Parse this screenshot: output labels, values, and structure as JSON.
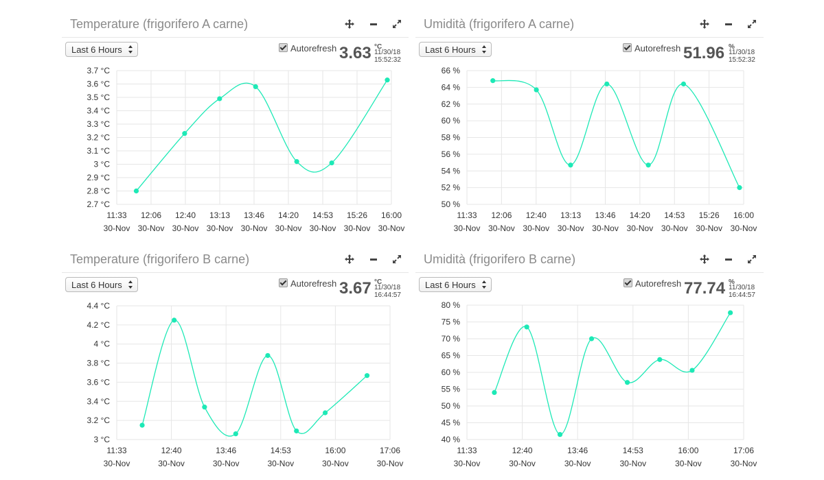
{
  "panels": [
    {
      "title": "Temperature (frigorifero A carne)",
      "range_label": "Last 6 Hours",
      "autorefresh_label": "Autorefresh",
      "autorefresh_checked": true,
      "current_value": "3.63",
      "unit": "°C",
      "date": "11/30/18",
      "time": "15:52:32",
      "line_color": "#1de9b6"
    },
    {
      "title": "Umidità (frigorifero A carne)",
      "range_label": "Last 6 Hours",
      "autorefresh_label": "Autorefresh",
      "autorefresh_checked": true,
      "current_value": "51.96",
      "unit": "%",
      "date": "11/30/18",
      "time": "15:52:32",
      "line_color": "#1de9b6"
    },
    {
      "title": "Temperature (frigorifero B carne)",
      "range_label": "Last 6 Hours",
      "autorefresh_label": "Autorefresh",
      "autorefresh_checked": true,
      "current_value": "3.67",
      "unit": "°C",
      "date": "11/30/18",
      "time": "16:44:57",
      "line_color": "#1de9b6"
    },
    {
      "title": "Umidità (frigorifero B carne)",
      "range_label": "Last 6 Hours",
      "autorefresh_label": "Autorefresh",
      "autorefresh_checked": true,
      "current_value": "77.74",
      "unit": "%",
      "date": "11/30/18",
      "time": "16:44:57",
      "line_color": "#1de9b6"
    }
  ],
  "icons": {
    "move": "move-icon",
    "minimize": "minimize-icon",
    "expand": "expand-icon",
    "select_arrows": "select-arrows-icon",
    "checkbox": "checkbox-checked-icon"
  },
  "chart_data": [
    {
      "type": "line",
      "title": "Temperature (frigorifero A carne)",
      "x_ticks": [
        "11:33",
        "12:06",
        "12:40",
        "13:13",
        "13:46",
        "14:20",
        "14:53",
        "15:26",
        "16:00"
      ],
      "x_tick_sublabel": "30-Nov",
      "y_ticks": [
        "2.7 °C",
        "2.8 °C",
        "2.9 °C",
        "3 °C",
        "3.1 °C",
        "3.2 °C",
        "3.3 °C",
        "3.4 °C",
        "3.5 °C",
        "3.6 °C",
        "3.7 °C"
      ],
      "ylim": [
        2.7,
        3.7
      ],
      "grid": true,
      "series": [
        {
          "x": [
            "11:52",
            "12:39",
            "13:13",
            "13:48",
            "14:28",
            "15:02",
            "15:56"
          ],
          "values": [
            2.8,
            3.23,
            3.49,
            3.58,
            3.02,
            3.01,
            3.63
          ]
        }
      ]
    },
    {
      "type": "line",
      "title": "Umidità (frigorifero A carne)",
      "x_ticks": [
        "11:33",
        "12:06",
        "12:40",
        "13:13",
        "13:46",
        "14:20",
        "14:53",
        "15:26",
        "16:00"
      ],
      "x_tick_sublabel": "30-Nov",
      "y_ticks": [
        "50 %",
        "52 %",
        "54 %",
        "56 %",
        "58 %",
        "60 %",
        "62 %",
        "64 %",
        "66 %"
      ],
      "ylim": [
        50,
        66
      ],
      "grid": true,
      "series": [
        {
          "x": [
            "11:58",
            "12:40",
            "13:13",
            "13:48",
            "14:28",
            "15:02",
            "15:56"
          ],
          "values": [
            64.8,
            63.7,
            54.7,
            64.4,
            54.7,
            64.4,
            52.0
          ]
        }
      ]
    },
    {
      "type": "line",
      "title": "Temperature (frigorifero B carne)",
      "x_ticks": [
        "11:33",
        "12:40",
        "13:46",
        "14:53",
        "16:00",
        "17:06"
      ],
      "x_tick_sublabel": "30-Nov",
      "y_ticks": [
        "3 °C",
        "3.2 °C",
        "3.4 °C",
        "3.6 °C",
        "3.8 °C",
        "4 °C",
        "4.2 °C",
        "4.4 °C"
      ],
      "ylim": [
        3,
        4.4
      ],
      "grid": true,
      "series": [
        {
          "x": [
            "12:04",
            "12:43",
            "13:20",
            "13:58",
            "14:37",
            "15:12",
            "15:47",
            "16:38"
          ],
          "values": [
            3.15,
            4.25,
            3.34,
            3.06,
            3.88,
            3.09,
            3.28,
            3.67
          ]
        }
      ]
    },
    {
      "type": "line",
      "title": "Umidità (frigorifero B carne)",
      "x_ticks": [
        "11:33",
        "12:40",
        "13:46",
        "14:53",
        "16:00",
        "17:06"
      ],
      "x_tick_sublabel": "30-Nov",
      "y_ticks": [
        "40 %",
        "45 %",
        "50 %",
        "55 %",
        "60 %",
        "65 %",
        "70 %",
        "75 %",
        "80 %"
      ],
      "ylim": [
        40,
        80
      ],
      "grid": true,
      "series": [
        {
          "x": [
            "12:06",
            "12:45",
            "13:25",
            "14:03",
            "14:46",
            "15:25",
            "16:04",
            "16:50"
          ],
          "values": [
            54.0,
            73.5,
            41.5,
            70.0,
            57.0,
            63.8,
            60.6,
            77.74
          ]
        }
      ]
    }
  ]
}
